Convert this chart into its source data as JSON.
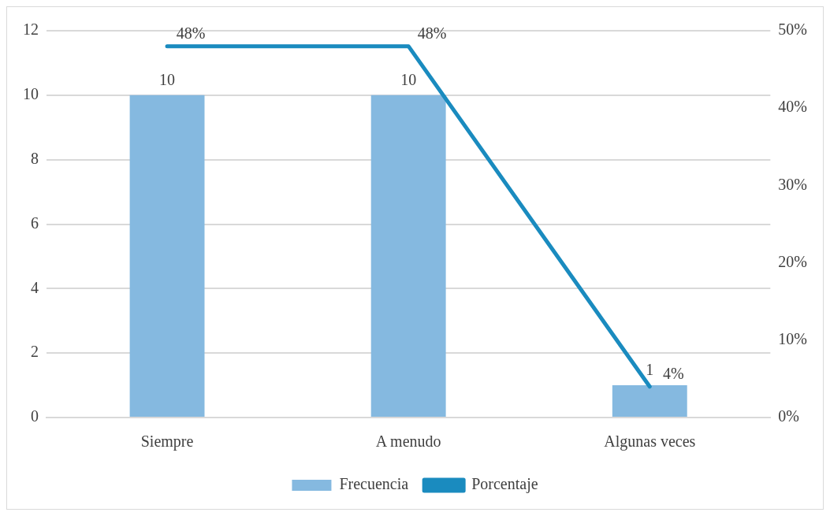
{
  "chart_data": {
    "type": "bar",
    "categories": [
      "Siempre",
      "A menudo",
      "Algunas veces"
    ],
    "series": [
      {
        "name": "Frecuencia",
        "color": "#85b9e0",
        "values": [
          10,
          10,
          1
        ],
        "value_labels": [
          "10",
          "10",
          "1"
        ]
      },
      {
        "name": "Porcentaje",
        "type": "line",
        "axis": "y2",
        "color": "#1a8bbf",
        "values": [
          48,
          48,
          4
        ],
        "value_labels": [
          "48%",
          "48%",
          "4%"
        ]
      }
    ],
    "ylim": [
      0,
      12
    ],
    "yticks": [
      0,
      2,
      4,
      6,
      8,
      10,
      12
    ],
    "y2lim": [
      0,
      50
    ],
    "y2ticks": [
      {
        "value": 0,
        "label": "0%"
      },
      {
        "value": 10,
        "label": "10%"
      },
      {
        "value": 20,
        "label": "20%"
      },
      {
        "value": 30,
        "label": "30%"
      },
      {
        "value": 40,
        "label": "40%"
      },
      {
        "value": 50,
        "label": "50%"
      }
    ],
    "grid": "y",
    "legend": "bottom",
    "marker": "none",
    "line_style": "solid"
  }
}
